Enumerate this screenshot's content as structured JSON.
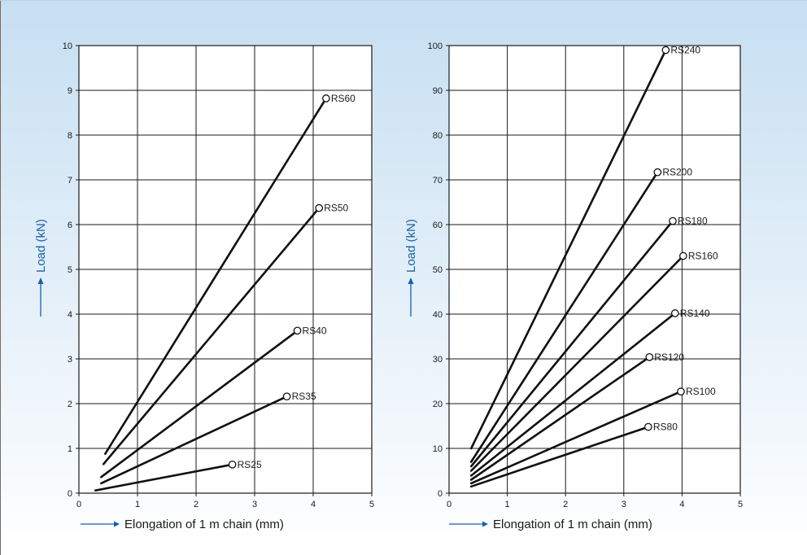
{
  "colors": {
    "axis_title": "#1a5fa8",
    "axis_title_x": "#1a1a1a",
    "line": "#111111",
    "background_top": "#c6dff2"
  },
  "chart_data": [
    {
      "type": "line",
      "xlabel": "Elongation of 1 m chain (mm)",
      "ylabel": "Load (kN)",
      "xlim": [
        0,
        5
      ],
      "ylim": [
        0,
        10
      ],
      "xticks": [
        "0",
        "1",
        "2",
        "3",
        "4",
        "5"
      ],
      "yticks": [
        "0",
        "1",
        "2",
        "3",
        "4",
        "5",
        "6",
        "7",
        "8",
        "9",
        "10"
      ],
      "grid": true,
      "series": [
        {
          "name": "RS25",
          "x": [
            0.28,
            2.62
          ],
          "y": [
            0.06,
            0.64
          ]
        },
        {
          "name": "RS35",
          "x": [
            0.38,
            3.55
          ],
          "y": [
            0.22,
            2.16
          ]
        },
        {
          "name": "RS40",
          "x": [
            0.38,
            3.73
          ],
          "y": [
            0.36,
            3.63
          ]
        },
        {
          "name": "RS50",
          "x": [
            0.42,
            4.1
          ],
          "y": [
            0.65,
            6.37
          ]
        },
        {
          "name": "RS60",
          "x": [
            0.45,
            4.22
          ],
          "y": [
            0.88,
            8.82
          ]
        }
      ]
    },
    {
      "type": "line",
      "xlabel": "Elongation of 1 m chain (mm)",
      "ylabel": "Load (kN)",
      "xlim": [
        0,
        5
      ],
      "ylim": [
        0,
        100
      ],
      "xticks": [
        "0",
        "1",
        "2",
        "3",
        "4",
        "5"
      ],
      "yticks": [
        "0",
        "10",
        "20",
        "30",
        "40",
        "50",
        "60",
        "70",
        "80",
        "90",
        "100"
      ],
      "grid": true,
      "series": [
        {
          "name": "RS80",
          "x": [
            0.38,
            3.42
          ],
          "y": [
            1.5,
            14.8
          ]
        },
        {
          "name": "RS100",
          "x": [
            0.38,
            3.98
          ],
          "y": [
            2.2,
            22.7
          ]
        },
        {
          "name": "RS120",
          "x": [
            0.38,
            3.44
          ],
          "y": [
            3.0,
            30.4
          ]
        },
        {
          "name": "RS140",
          "x": [
            0.38,
            3.88
          ],
          "y": [
            3.9,
            40.2
          ]
        },
        {
          "name": "RS160",
          "x": [
            0.38,
            4.02
          ],
          "y": [
            5.0,
            53.0
          ]
        },
        {
          "name": "RS180",
          "x": [
            0.38,
            3.84
          ],
          "y": [
            6.0,
            60.8
          ]
        },
        {
          "name": "RS200",
          "x": [
            0.38,
            3.58
          ],
          "y": [
            7.0,
            71.7
          ]
        },
        {
          "name": "RS240",
          "x": [
            0.38,
            3.72
          ],
          "y": [
            10.0,
            99.0
          ]
        }
      ]
    }
  ]
}
